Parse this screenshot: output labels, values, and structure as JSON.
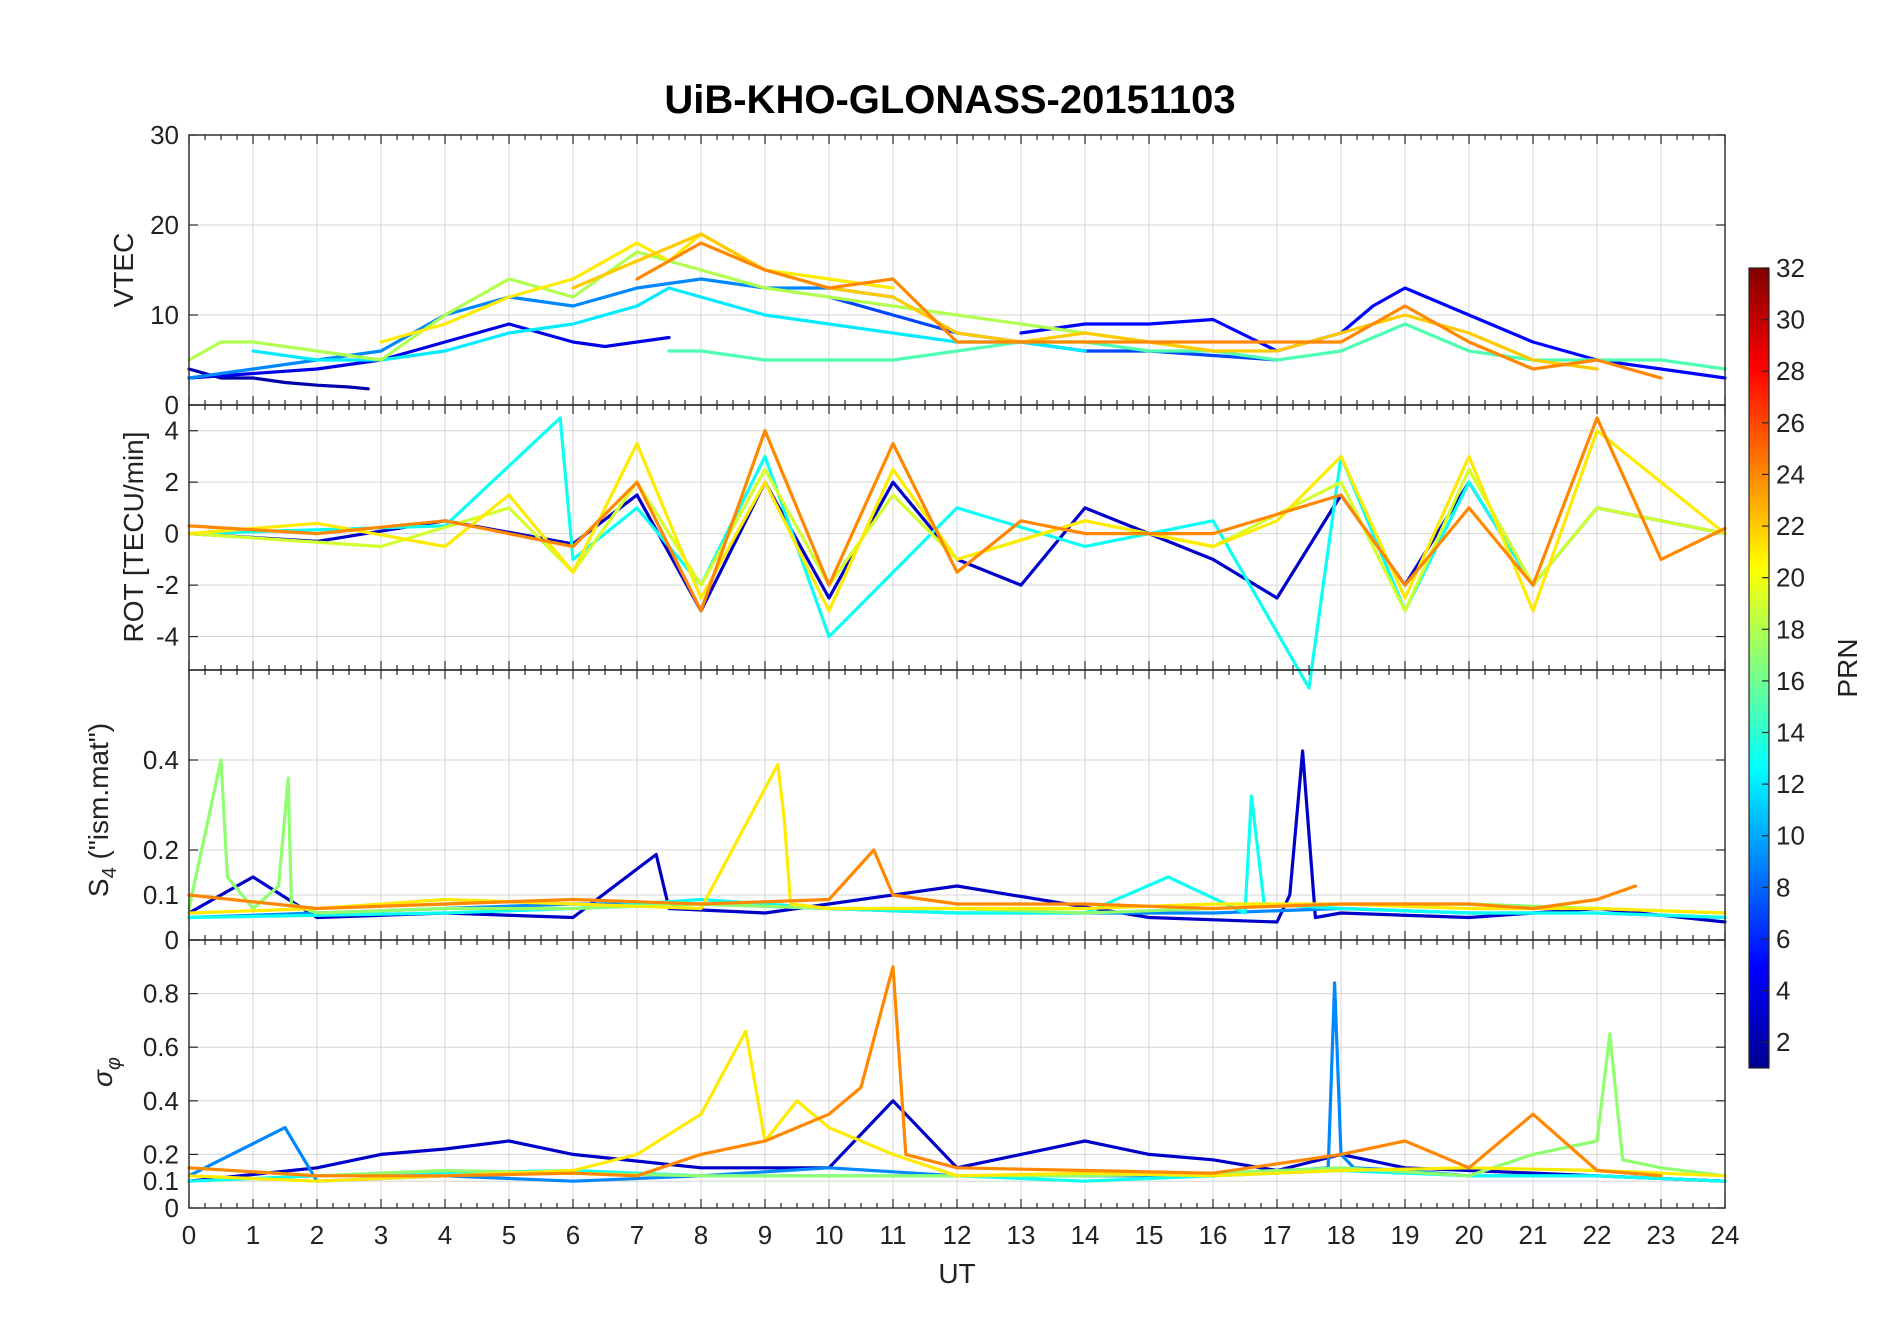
{
  "figure": {
    "title": "UiB-KHO-GLONASS-20151103",
    "xlabel": "UT",
    "x_ticks": [
      "0",
      "1",
      "2",
      "3",
      "4",
      "5",
      "6",
      "7",
      "8",
      "9",
      "10",
      "11",
      "12",
      "13",
      "14",
      "15",
      "16",
      "17",
      "18",
      "19",
      "20",
      "21",
      "22",
      "23",
      "24"
    ]
  },
  "colorbar": {
    "label": "PRN",
    "range": [
      1,
      32
    ],
    "ticks": [
      "2",
      "4",
      "6",
      "8",
      "10",
      "12",
      "14",
      "16",
      "18",
      "20",
      "22",
      "24",
      "26",
      "28",
      "30",
      "32"
    ],
    "colormap": "jet",
    "colors": [
      "#00008f",
      "#0000ff",
      "#0080ff",
      "#00ffff",
      "#80ff80",
      "#ffff00",
      "#ff8000",
      "#ff0000",
      "#800000"
    ]
  },
  "panels": {
    "vtec": {
      "ylabel": "VTEC",
      "ticks": [
        "0",
        "10",
        "20",
        "30"
      ]
    },
    "rot": {
      "ylabel": "ROT [TECU/min]",
      "ticks": [
        "-4",
        "-2",
        "0",
        "2",
        "4"
      ]
    },
    "s4": {
      "ylabel_main": "S",
      "ylabel_sub": "4",
      "ylabel_rest": " (\"ism.mat\")",
      "ticks": [
        "0",
        "0.1",
        "0.2",
        "0.4"
      ]
    },
    "sigma": {
      "ylabel_main": "σ",
      "ylabel_sub": "φ",
      "ticks": [
        "0",
        "0.1",
        "0.2",
        "0.4",
        "0.6",
        "0.8"
      ]
    }
  },
  "chart_data": [
    {
      "type": "line",
      "panel": "vtec",
      "ylabel": "VTEC",
      "xlim": [
        0,
        24
      ],
      "ylim": [
        0,
        30
      ],
      "grid": true,
      "color_by": "PRN",
      "series": [
        {
          "prn": 2,
          "x": [
            0,
            0.5,
            1,
            1.5,
            2,
            2.5,
            2.8
          ],
          "y": [
            4,
            3,
            3,
            2.5,
            2.2,
            2,
            1.8
          ]
        },
        {
          "prn": 4,
          "x": [
            0,
            1,
            2,
            3,
            4,
            5,
            6,
            6.5,
            7,
            7.5
          ],
          "y": [
            3,
            3.5,
            4,
            5,
            7,
            9,
            7,
            6.5,
            7,
            7.5
          ]
        },
        {
          "prn": 7,
          "x": [
            10,
            11,
            12,
            13,
            14,
            15,
            16,
            17
          ],
          "y": [
            12,
            10,
            8,
            7,
            6,
            6,
            5.5,
            5
          ]
        },
        {
          "prn": 5,
          "x": [
            13,
            14,
            15,
            16,
            17,
            18,
            18.5,
            19,
            20,
            21,
            22,
            23,
            24
          ],
          "y": [
            8,
            9,
            9,
            9.5,
            6,
            8,
            11,
            13,
            10,
            7,
            5,
            4,
            3
          ]
        },
        {
          "prn": 9,
          "x": [
            0,
            1,
            2,
            3,
            4,
            5,
            6,
            7,
            8,
            9,
            10,
            11
          ],
          "y": [
            3,
            4,
            5,
            6,
            10,
            12,
            11,
            13,
            14,
            13,
            13,
            12
          ]
        },
        {
          "prn": 12,
          "x": [
            1,
            2,
            3,
            4,
            5,
            6,
            7,
            7.5,
            8,
            9,
            10,
            11,
            12,
            13,
            14
          ],
          "y": [
            6,
            5,
            5,
            6,
            8,
            9,
            11,
            13,
            12,
            10,
            9,
            8,
            7,
            7,
            6
          ]
        },
        {
          "prn": 15,
          "x": [
            7.5,
            8,
            9,
            10,
            11,
            12,
            13,
            14,
            15,
            16,
            17,
            18,
            19,
            20,
            21,
            22,
            23,
            24
          ],
          "y": [
            6,
            6,
            5,
            5,
            5,
            6,
            7,
            7,
            6,
            6,
            5,
            6,
            9,
            6,
            5,
            5,
            5,
            4
          ]
        },
        {
          "prn": 18,
          "x": [
            0,
            0.5,
            1,
            2,
            3,
            4,
            5,
            6,
            7,
            8,
            9,
            10,
            11,
            12,
            13,
            14,
            15,
            16
          ],
          "y": [
            5,
            7,
            7,
            6,
            5,
            10,
            14,
            12,
            17,
            15,
            13,
            12,
            11,
            10,
            9,
            8,
            7,
            6
          ]
        },
        {
          "prn": 21,
          "x": [
            3,
            4,
            5,
            6,
            7,
            7.5,
            8,
            9,
            10,
            11
          ],
          "y": [
            7,
            9,
            12,
            14,
            18,
            16,
            19,
            15,
            14,
            13
          ]
        },
        {
          "prn": 22,
          "x": [
            6,
            7,
            8,
            9,
            10,
            11,
            12,
            13,
            14,
            15,
            16,
            17,
            18,
            19,
            20,
            21,
            22
          ],
          "y": [
            13,
            16,
            19,
            15,
            13,
            12,
            8,
            7,
            8,
            7,
            6,
            6,
            8,
            10,
            8,
            5,
            4
          ]
        },
        {
          "prn": 24,
          "x": [
            7,
            8,
            9,
            10,
            11,
            12,
            14,
            16,
            18,
            19,
            20,
            21,
            22,
            23
          ],
          "y": [
            14,
            18,
            15,
            13,
            14,
            7,
            7,
            7,
            7,
            11,
            7,
            4,
            5,
            3
          ]
        }
      ]
    },
    {
      "type": "line",
      "panel": "rot",
      "ylabel": "ROT [TECU/min]",
      "xlim": [
        0,
        24
      ],
      "ylim": [
        -5.3,
        5
      ],
      "grid": true,
      "color_by": "PRN",
      "series": [
        {
          "prn": 3,
          "x": [
            0,
            2,
            4,
            6,
            7,
            8,
            9,
            10,
            11,
            12,
            13,
            14,
            16,
            17,
            18,
            19,
            20,
            21,
            22,
            24
          ],
          "y": [
            0,
            -0.3,
            0.5,
            -0.4,
            1.5,
            -3,
            2,
            -2.5,
            2,
            -1,
            -2,
            1,
            -1,
            -2.5,
            1.5,
            -2,
            2,
            -2,
            1,
            0
          ]
        },
        {
          "prn": 13,
          "x": [
            0,
            4,
            5.8,
            6,
            7,
            8,
            9,
            10,
            12,
            14,
            16,
            17.5,
            18,
            19,
            20,
            21,
            22,
            24
          ],
          "y": [
            0,
            0.3,
            4.5,
            -1,
            1,
            -2,
            3,
            -4,
            1,
            -0.5,
            0.5,
            -6,
            3,
            -3,
            2,
            -2,
            1,
            0
          ]
        },
        {
          "prn": 19,
          "x": [
            0,
            3,
            5,
            6,
            7,
            8,
            9,
            10,
            11,
            12,
            14,
            16,
            18,
            19,
            20,
            21,
            22,
            24
          ],
          "y": [
            0,
            -0.5,
            1,
            -1.5,
            2,
            -2,
            2.5,
            -2,
            1.5,
            -1,
            0.5,
            -0.5,
            2,
            -3,
            2.5,
            -2,
            1,
            0
          ]
        },
        {
          "prn": 21,
          "x": [
            0,
            2,
            4,
            5,
            6,
            7,
            8,
            9,
            10,
            11,
            12,
            14,
            16,
            17,
            18,
            19,
            20,
            21,
            22,
            24
          ],
          "y": [
            0,
            0.4,
            -0.5,
            1.5,
            -1.5,
            3.5,
            -2.5,
            2,
            -3,
            2.5,
            -1,
            0.5,
            -0.5,
            0.5,
            3,
            -2.5,
            3,
            -3,
            4,
            0
          ]
        },
        {
          "prn": 24,
          "x": [
            0,
            2,
            4,
            6,
            7,
            8,
            9,
            10,
            11,
            12,
            13,
            14,
            16,
            18,
            19,
            20,
            21,
            22,
            23,
            24
          ],
          "y": [
            0.3,
            0,
            0.5,
            -0.5,
            2,
            -3,
            4,
            -2,
            3.5,
            -1.5,
            0.5,
            0,
            0,
            1.5,
            -2,
            1,
            -2,
            4.5,
            -1,
            0.2
          ]
        }
      ]
    },
    {
      "type": "line",
      "panel": "s4",
      "ylabel": "S4 (\"ism.mat\")",
      "xlim": [
        0,
        24
      ],
      "ylim": [
        0,
        0.6
      ],
      "grid": true,
      "color_by": "PRN",
      "series": [
        {
          "prn": 3,
          "x": [
            0,
            1,
            2,
            4,
            6,
            7.3,
            7.5,
            9,
            12,
            15,
            17,
            17.2,
            17.4,
            17.6,
            18,
            20,
            22,
            24
          ],
          "y": [
            0.06,
            0.14,
            0.05,
            0.06,
            0.05,
            0.19,
            0.07,
            0.06,
            0.12,
            0.05,
            0.04,
            0.1,
            0.42,
            0.05,
            0.06,
            0.05,
            0.07,
            0.04
          ]
        },
        {
          "prn": 9,
          "x": [
            0,
            2,
            4,
            6,
            8,
            10,
            12,
            14,
            16,
            18,
            20,
            22,
            24
          ],
          "y": [
            0.05,
            0.06,
            0.07,
            0.08,
            0.08,
            0.07,
            0.06,
            0.06,
            0.06,
            0.07,
            0.06,
            0.06,
            0.05
          ]
        },
        {
          "prn": 13,
          "x": [
            0,
            4,
            6,
            8,
            10,
            12,
            14,
            15.3,
            16.5,
            16.6,
            16.8,
            18,
            20,
            22,
            24
          ],
          "y": [
            0.05,
            0.06,
            0.07,
            0.09,
            0.07,
            0.06,
            0.06,
            0.14,
            0.06,
            0.32,
            0.08,
            0.07,
            0.06,
            0.06,
            0.05
          ]
        },
        {
          "prn": 17,
          "x": [
            0,
            0.5,
            0.6,
            1,
            1.4,
            1.55,
            1.6,
            2,
            4,
            6,
            8,
            10,
            12,
            14,
            16,
            18,
            20,
            22,
            24
          ],
          "y": [
            0.07,
            0.4,
            0.14,
            0.07,
            0.12,
            0.36,
            0.08,
            0.06,
            0.07,
            0.07,
            0.08,
            0.07,
            0.07,
            0.06,
            0.07,
            0.08,
            0.08,
            0.07,
            0.06
          ]
        },
        {
          "prn": 21,
          "x": [
            0,
            2,
            4,
            6,
            8,
            9.2,
            9.3,
            9.4,
            10,
            12,
            14,
            16,
            18,
            20,
            22,
            24
          ],
          "y": [
            0.06,
            0.07,
            0.09,
            0.08,
            0.07,
            0.39,
            0.27,
            0.08,
            0.07,
            0.07,
            0.07,
            0.08,
            0.08,
            0.07,
            0.07,
            0.06
          ]
        },
        {
          "prn": 24,
          "x": [
            0,
            2,
            4,
            6,
            8,
            10,
            10.7,
            11,
            12,
            14,
            16,
            18,
            20,
            21,
            22,
            22.6
          ],
          "y": [
            0.1,
            0.07,
            0.08,
            0.09,
            0.08,
            0.09,
            0.2,
            0.1,
            0.08,
            0.08,
            0.07,
            0.08,
            0.08,
            0.07,
            0.09,
            0.12
          ]
        }
      ]
    },
    {
      "type": "line",
      "panel": "sigma",
      "ylabel": "σφ",
      "xlim": [
        0,
        24
      ],
      "ylim": [
        0,
        1
      ],
      "grid": true,
      "color_by": "PRN",
      "series": [
        {
          "prn": 3,
          "x": [
            0,
            2,
            3,
            4,
            5,
            6,
            8,
            10,
            11,
            12,
            13,
            14,
            15,
            16,
            17,
            18,
            19,
            20,
            22,
            24
          ],
          "y": [
            0.1,
            0.15,
            0.2,
            0.22,
            0.25,
            0.2,
            0.15,
            0.15,
            0.4,
            0.15,
            0.2,
            0.25,
            0.2,
            0.18,
            0.14,
            0.2,
            0.15,
            0.14,
            0.12,
            0.1
          ]
        },
        {
          "prn": 9,
          "x": [
            0,
            1.5,
            2,
            4,
            6,
            8,
            10,
            12,
            14,
            16,
            17.8,
            17.9,
            18,
            18.2,
            19,
            20,
            22,
            24
          ],
          "y": [
            0.12,
            0.3,
            0.1,
            0.12,
            0.1,
            0.12,
            0.15,
            0.12,
            0.12,
            0.12,
            0.15,
            0.84,
            0.2,
            0.15,
            0.14,
            0.12,
            0.12,
            0.1
          ]
        },
        {
          "prn": 13,
          "x": [
            0,
            2,
            4,
            6,
            8,
            10,
            12,
            14,
            16,
            18,
            20,
            22,
            24
          ],
          "y": [
            0.1,
            0.12,
            0.13,
            0.14,
            0.12,
            0.12,
            0.12,
            0.1,
            0.12,
            0.14,
            0.12,
            0.12,
            0.1
          ]
        },
        {
          "prn": 17,
          "x": [
            0,
            2,
            4,
            6,
            8,
            10,
            12,
            14,
            16,
            18,
            20,
            21,
            22,
            22.2,
            22.4,
            23,
            24
          ],
          "y": [
            0.15,
            0.12,
            0.14,
            0.13,
            0.12,
            0.12,
            0.12,
            0.12,
            0.13,
            0.15,
            0.12,
            0.2,
            0.25,
            0.65,
            0.18,
            0.15,
            0.12
          ]
        },
        {
          "prn": 21,
          "x": [
            0,
            2,
            4,
            6,
            7,
            8,
            8.7,
            9,
            9.5,
            10,
            11,
            12,
            14,
            16,
            18,
            20,
            22,
            24
          ],
          "y": [
            0.12,
            0.1,
            0.12,
            0.14,
            0.2,
            0.35,
            0.66,
            0.25,
            0.4,
            0.3,
            0.2,
            0.12,
            0.13,
            0.12,
            0.14,
            0.15,
            0.14,
            0.12
          ]
        },
        {
          "prn": 24,
          "x": [
            0,
            2,
            4,
            6,
            7,
            8,
            9,
            10,
            10.5,
            11,
            11.2,
            12,
            14,
            16,
            18,
            19,
            20,
            21,
            22,
            23
          ],
          "y": [
            0.15,
            0.12,
            0.12,
            0.13,
            0.12,
            0.2,
            0.25,
            0.35,
            0.45,
            0.9,
            0.2,
            0.15,
            0.14,
            0.13,
            0.2,
            0.25,
            0.15,
            0.35,
            0.14,
            0.12
          ]
        }
      ]
    }
  ]
}
